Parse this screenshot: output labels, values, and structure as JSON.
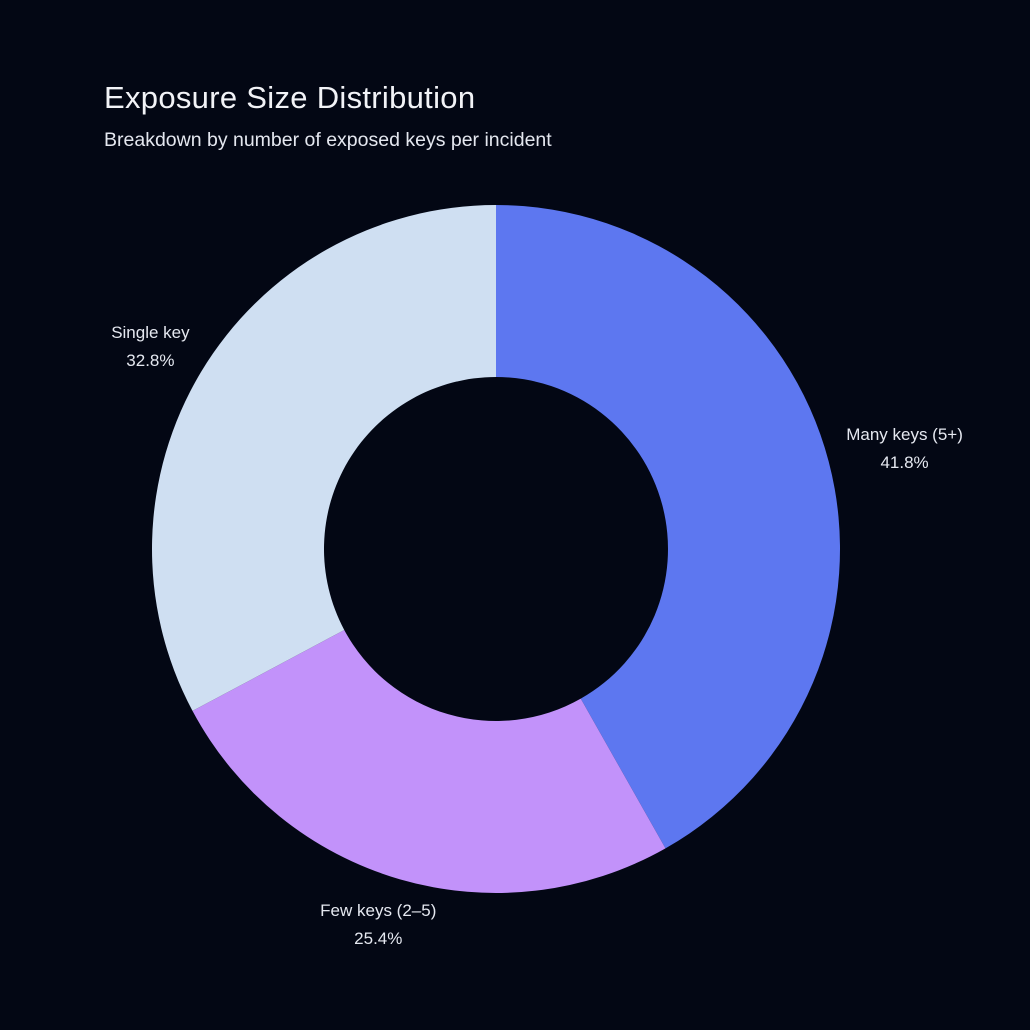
{
  "colors": {
    "background": "#030714",
    "title_text": "#F2F3F7",
    "subtitle_text": "#E4E7EF",
    "label_text": "#E5E8F0"
  },
  "chart_data": {
    "type": "pie",
    "subtype": "donut",
    "title": "Exposure Size Distribution",
    "subtitle": "Breakdown by number of exposed keys per incident",
    "labels": [
      "Many keys (5+)",
      "Few keys (2–5)",
      "Single key"
    ],
    "values": [
      41.8,
      25.4,
      32.8
    ],
    "value_suffix": "%",
    "slice_colors": [
      "#5D77F0",
      "#C292FA",
      "#CFDFF2"
    ],
    "donut_hole_ratio": 0.5,
    "start_angle": "12-oclock",
    "direction": "clockwise",
    "labels_position": "outside",
    "legend": "none"
  }
}
